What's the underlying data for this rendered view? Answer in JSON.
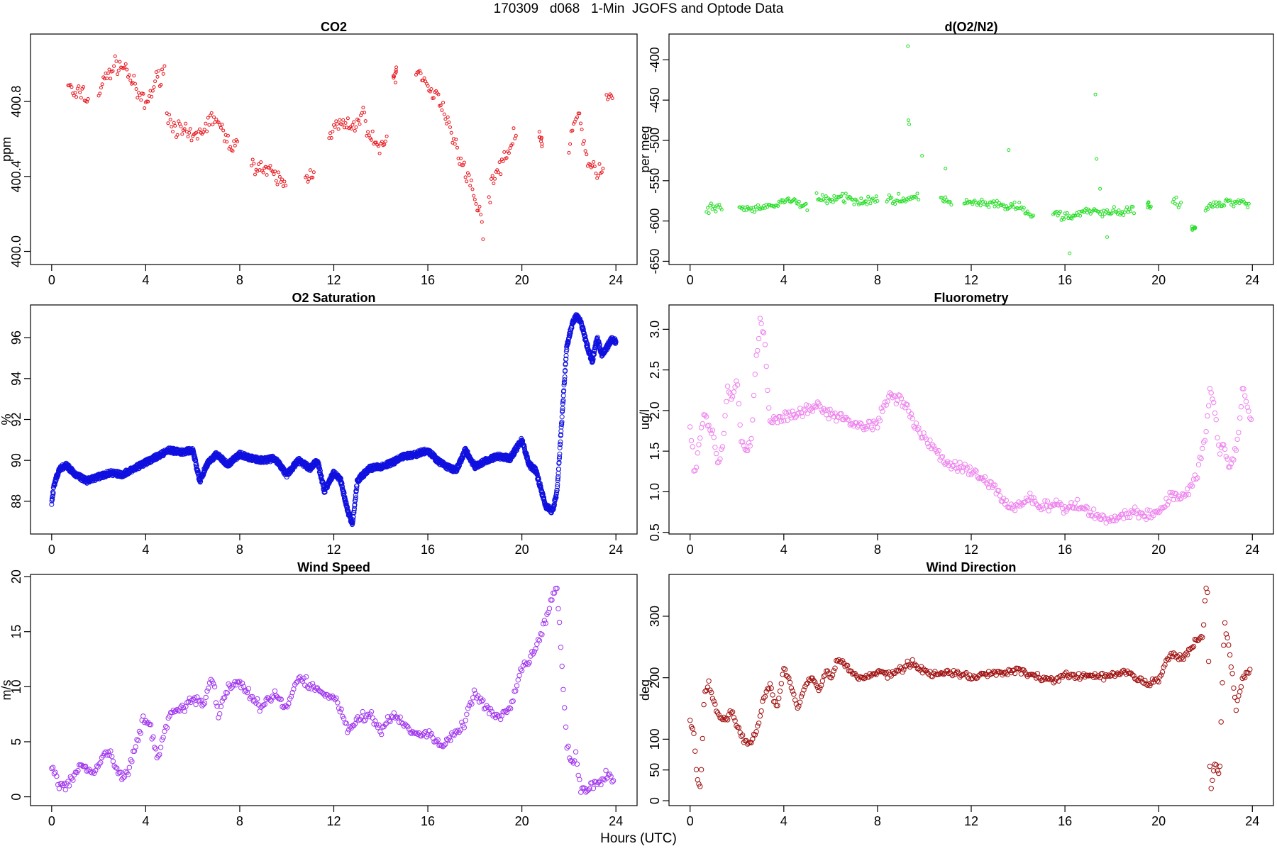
{
  "figure": {
    "title": "170309   d068   1-Min  JGOFS and Optode Data",
    "xlabel": "Hours (UTC)"
  },
  "chart_data": [
    {
      "type": "scatter",
      "title": "CO2",
      "xlabel": "Hours (UTC)",
      "ylabel": "ppm",
      "xlim": [
        -0.9,
        24.9
      ],
      "ylim": [
        399.93,
        401.16
      ],
      "xticks": [
        0,
        4,
        8,
        12,
        16,
        20,
        24
      ],
      "yticks": [
        400.0,
        400.4,
        400.8
      ],
      "ytick_labels": [
        "400.0",
        "400.4",
        "400.8"
      ],
      "color": "#e8141c",
      "marker_size": 2.0,
      "segments": [
        {
          "x": [
            0.7,
            1.0,
            1.3,
            1.6
          ],
          "y": [
            400.9,
            400.82,
            400.86,
            400.78
          ]
        },
        {
          "x": [
            2.0,
            2.4,
            2.8,
            3.2,
            3.6,
            4.0,
            4.4,
            4.8
          ],
          "y": [
            400.85,
            400.95,
            401.0,
            400.97,
            400.85,
            400.78,
            400.9,
            400.98
          ]
        },
        {
          "x": [
            4.9,
            5.4,
            6.0,
            6.5,
            6.9,
            7.4,
            7.9
          ],
          "y": [
            400.72,
            400.65,
            400.6,
            400.66,
            400.72,
            400.6,
            400.55
          ]
        },
        {
          "x": [
            8.5,
            9.0,
            9.5,
            10.0
          ],
          "y": [
            400.48,
            400.44,
            400.4,
            400.35
          ]
        },
        {
          "x": [
            10.8,
            11.2
          ],
          "y": [
            400.38,
            400.45
          ]
        },
        {
          "x": [
            11.8,
            12.3,
            12.8,
            13.2,
            13.6,
            14.0,
            14.3
          ],
          "y": [
            400.63,
            400.68,
            400.65,
            400.74,
            400.6,
            400.55,
            400.6
          ]
        },
        {
          "x": [
            14.6
          ],
          "y": [
            400.95
          ]
        },
        {
          "x": [
            15.5,
            16.0,
            16.5,
            17.0,
            17.5,
            18.0,
            18.4
          ],
          "y": [
            401.0,
            400.85,
            400.82,
            400.65,
            400.45,
            400.3,
            400.1
          ]
        },
        {
          "x": [
            18.6,
            19.0,
            19.5,
            19.8
          ],
          "y": [
            400.3,
            400.45,
            400.55,
            400.65
          ]
        },
        {
          "x": [
            20.8
          ],
          "y": [
            400.6
          ]
        },
        {
          "x": [
            22.0,
            22.4,
            22.8,
            23.2,
            23.5
          ],
          "y": [
            400.55,
            400.75,
            400.48,
            400.42,
            400.4
          ]
        },
        {
          "x": [
            23.6,
            23.9
          ],
          "y": [
            400.8,
            400.87
          ]
        }
      ],
      "jitter": 0.07
    },
    {
      "type": "scatter",
      "title": "d(O2/N2)",
      "xlabel": "Hours (UTC)",
      "ylabel": "per meg",
      "xlim": [
        -0.9,
        24.9
      ],
      "ylim": [
        -654,
        -368
      ],
      "xticks": [
        0,
        4,
        8,
        12,
        16,
        20,
        24
      ],
      "yticks": [
        -650,
        -600,
        -550,
        -500,
        -450,
        -400
      ],
      "ytick_labels": [
        "-650",
        "-600",
        "-550",
        "-500",
        "-450",
        "-400"
      ],
      "color": "#22dd22",
      "marker_size": 2.0,
      "segments": [
        {
          "x": [
            0.7,
            1.0,
            1.4
          ],
          "y": [
            -585,
            -585,
            -582
          ]
        },
        {
          "x": [
            2.1,
            2.6,
            3.1,
            3.6,
            4.1,
            4.6,
            5.0
          ],
          "y": [
            -583,
            -585,
            -585,
            -580,
            -575,
            -577,
            -582
          ]
        },
        {
          "x": [
            5.4,
            6.0,
            6.6,
            7.2,
            7.8,
            8.0
          ],
          "y": [
            -572,
            -573,
            -572,
            -575,
            -573,
            -572
          ]
        },
        {
          "x": [
            8.4,
            9.0,
            9.5,
            9.8
          ],
          "y": [
            -575,
            -573,
            -573,
            -570
          ]
        },
        {
          "x": [
            10.7,
            11.0,
            11.2
          ],
          "y": [
            -570,
            -575,
            -580
          ]
        },
        {
          "x": [
            11.7,
            12.3,
            12.9,
            13.5,
            14.0,
            14.4,
            14.7
          ],
          "y": [
            -578,
            -578,
            -580,
            -582,
            -583,
            -590,
            -595
          ]
        },
        {
          "x": [
            15.5,
            16.0,
            16.5,
            17.0,
            17.5,
            18.0,
            18.5,
            19.0
          ],
          "y": [
            -590,
            -595,
            -592,
            -588,
            -590,
            -588,
            -590,
            -585
          ]
        },
        {
          "x": [
            19.6
          ],
          "y": [
            -578
          ]
        },
        {
          "x": [
            20.6,
            21.0
          ],
          "y": [
            -575,
            -580
          ]
        },
        {
          "x": [
            21.5
          ],
          "y": [
            -608
          ]
        },
        {
          "x": [
            22.0,
            22.5,
            23.0,
            23.5,
            23.9
          ],
          "y": [
            -585,
            -580,
            -577,
            -575,
            -578
          ]
        }
      ],
      "outliers": {
        "x": [
          9.3,
          9.32,
          9.35,
          13.6,
          17.3,
          17.35,
          9.9,
          10.9,
          17.5,
          16.2,
          17.8
        ],
        "y": [
          -383,
          -475,
          -480,
          -512,
          -443,
          -523,
          -519,
          -535,
          -560,
          -640,
          -620
        ]
      },
      "jitter": 8
    },
    {
      "type": "scatter",
      "title": "O2 Saturation",
      "xlabel": "Hours (UTC)",
      "ylabel": "%",
      "xlim": [
        -0.9,
        24.9
      ],
      "ylim": [
        86.4,
        97.6
      ],
      "xticks": [
        0,
        4,
        8,
        12,
        16,
        20,
        24
      ],
      "yticks": [
        88,
        90,
        92,
        94,
        96
      ],
      "ytick_labels": [
        "88",
        "90",
        "92",
        "94",
        "96"
      ],
      "color": "#1010e0",
      "marker_size": 3.0,
      "line": {
        "x": [
          0,
          0.1,
          0.3,
          0.6,
          1.0,
          1.5,
          2.0,
          2.5,
          3.0,
          3.5,
          4.0,
          4.5,
          5.0,
          5.5,
          6.0,
          6.3,
          6.6,
          7.0,
          7.5,
          8.0,
          8.5,
          9.0,
          9.5,
          10.0,
          10.5,
          11.0,
          11.3,
          11.6,
          12.0,
          12.3,
          12.6,
          12.8,
          13.0,
          13.5,
          14.0,
          14.5,
          15.0,
          15.5,
          16.0,
          16.4,
          16.8,
          17.2,
          17.6,
          18.0,
          18.5,
          19.0,
          19.5,
          20.0,
          20.3,
          20.6,
          21.0,
          21.3,
          21.5,
          21.7,
          21.9,
          22.1,
          22.3,
          22.5,
          22.8,
          23.0,
          23.2,
          23.4,
          23.6,
          23.8,
          24.0
        ],
        "y": [
          87.9,
          88.8,
          89.5,
          89.8,
          89.3,
          89.0,
          89.2,
          89.4,
          89.3,
          89.6,
          89.9,
          90.2,
          90.5,
          90.4,
          90.5,
          89.0,
          89.8,
          90.3,
          89.8,
          90.3,
          90.1,
          90.0,
          90.1,
          89.3,
          90.0,
          89.6,
          90.0,
          88.5,
          89.4,
          89.0,
          87.5,
          86.9,
          89.0,
          89.6,
          89.7,
          89.9,
          90.2,
          90.3,
          90.5,
          90.0,
          89.7,
          89.5,
          90.5,
          89.7,
          90.0,
          90.2,
          90.1,
          91.0,
          89.8,
          89.5,
          87.8,
          87.5,
          88.5,
          92.0,
          95.5,
          96.5,
          97.1,
          96.8,
          95.5,
          94.8,
          96.0,
          95.2,
          95.5,
          95.9,
          95.8
        ]
      }
    },
    {
      "type": "scatter",
      "title": "Fluorometry",
      "xlabel": "Hours (UTC)",
      "ylabel": "ug/l",
      "xlim": [
        -0.9,
        24.9
      ],
      "ylim": [
        0.48,
        3.3
      ],
      "xticks": [
        0,
        4,
        8,
        12,
        16,
        20,
        24
      ],
      "yticks": [
        0.5,
        1.0,
        1.5,
        2.0,
        2.5,
        3.0
      ],
      "ytick_labels": [
        "0.5",
        "1.0",
        "1.5",
        "2.0",
        "2.5",
        "3.0"
      ],
      "color": "#ee82ee",
      "marker_size": 3.2,
      "line": {
        "x": [
          0,
          0.2,
          0.4,
          0.6,
          0.8,
          1.0,
          1.2,
          1.4,
          1.6,
          1.8,
          2.0,
          2.2,
          2.4,
          2.6,
          2.8,
          3.0,
          3.2,
          3.4,
          3.6,
          4.0,
          4.5,
          5.0,
          5.5,
          6.0,
          6.5,
          7.0,
          7.5,
          8.0,
          8.5,
          9.0,
          9.5,
          10.0,
          10.5,
          11.0,
          11.5,
          12.0,
          12.5,
          13.0,
          13.5,
          14.0,
          14.5,
          15.0,
          15.5,
          16.0,
          16.5,
          17.0,
          17.5,
          18.0,
          18.5,
          19.0,
          19.5,
          20.0,
          20.5,
          21.0,
          21.5,
          21.8,
          22.0,
          22.2,
          22.4,
          22.6,
          22.8,
          23.0,
          23.3,
          23.6,
          23.8,
          24.0
        ],
        "y": [
          1.85,
          1.2,
          1.6,
          2.0,
          1.8,
          1.7,
          1.3,
          1.6,
          2.3,
          2.1,
          2.4,
          1.6,
          1.5,
          1.55,
          2.6,
          3.1,
          2.8,
          1.8,
          1.9,
          1.9,
          1.95,
          2.0,
          2.05,
          1.95,
          1.9,
          1.85,
          1.8,
          1.85,
          2.2,
          2.15,
          1.9,
          1.65,
          1.5,
          1.35,
          1.3,
          1.25,
          1.15,
          1.05,
          0.85,
          0.8,
          0.95,
          0.8,
          0.85,
          0.78,
          0.85,
          0.75,
          0.7,
          0.65,
          0.72,
          0.75,
          0.7,
          0.75,
          0.95,
          0.95,
          1.1,
          1.4,
          1.7,
          2.3,
          2.0,
          1.5,
          1.6,
          1.3,
          1.5,
          2.3,
          2.0,
          1.8
        ]
      },
      "jitter": 0.1
    },
    {
      "type": "scatter",
      "title": "Wind Speed",
      "xlabel": "Hours (UTC)",
      "ylabel": "m/s",
      "xlim": [
        -0.9,
        24.9
      ],
      "ylim": [
        -0.8,
        20.2
      ],
      "xticks": [
        0,
        4,
        8,
        12,
        16,
        20,
        24
      ],
      "yticks": [
        0,
        5,
        10,
        15,
        20
      ],
      "ytick_labels": [
        "0",
        "5",
        "10",
        "15",
        "20"
      ],
      "color": "#a035ee",
      "marker_size": 3.2,
      "line": {
        "x": [
          0,
          0.3,
          0.6,
          0.9,
          1.2,
          1.5,
          1.8,
          2.1,
          2.4,
          2.7,
          3.0,
          3.3,
          3.6,
          3.9,
          4.2,
          4.5,
          5.0,
          5.5,
          6.0,
          6.5,
          6.8,
          7.1,
          7.5,
          8.0,
          8.5,
          9.0,
          9.5,
          10.0,
          10.5,
          11.0,
          11.5,
          12.0,
          12.3,
          12.6,
          13.0,
          13.5,
          14.0,
          14.5,
          15.0,
          15.5,
          16.0,
          16.5,
          17.0,
          17.5,
          18.0,
          18.5,
          19.0,
          19.5,
          20.0,
          20.3,
          20.6,
          21.0,
          21.3,
          21.5,
          21.7,
          21.9,
          22.1,
          22.3,
          22.5,
          22.7,
          23.0,
          23.3,
          23.6,
          23.9
        ],
        "y": [
          2.5,
          1.3,
          1.0,
          1.5,
          3.0,
          2.5,
          2.0,
          3.5,
          4.0,
          3.0,
          1.5,
          2.5,
          5.0,
          7.0,
          6.5,
          3.5,
          7.5,
          8.0,
          9.0,
          8.5,
          11.0,
          7.5,
          10.0,
          10.5,
          9.0,
          8.0,
          9.5,
          8.0,
          11.0,
          10.0,
          9.5,
          9.0,
          8.0,
          6.0,
          7.0,
          7.5,
          6.0,
          7.5,
          6.5,
          5.5,
          6.0,
          4.5,
          5.5,
          6.5,
          9.5,
          8.0,
          7.0,
          8.0,
          11.5,
          12.5,
          13.5,
          16.0,
          18.0,
          19.0,
          12.0,
          5.0,
          3.0,
          3.5,
          1.0,
          0.5,
          1.0,
          1.5,
          2.0,
          1.5
        ]
      },
      "jitter": 0.7
    },
    {
      "type": "scatter",
      "title": "Wind Direction",
      "xlabel": "Hours (UTC)",
      "ylabel": "deg",
      "xlim": [
        -0.9,
        24.9
      ],
      "ylim": [
        -8,
        368
      ],
      "xticks": [
        0,
        4,
        8,
        12,
        16,
        20,
        24
      ],
      "yticks": [
        0,
        50,
        100,
        200,
        300
      ],
      "ytick_labels": [
        "0",
        "50",
        "100",
        "200",
        "300"
      ],
      "color": "#a01010",
      "marker_size": 3.2,
      "line": {
        "x": [
          0,
          0.15,
          0.3,
          0.45,
          0.6,
          0.8,
          1.0,
          1.2,
          1.5,
          1.8,
          2.0,
          2.3,
          2.6,
          2.9,
          3.1,
          3.4,
          3.7,
          4.0,
          4.3,
          4.6,
          4.9,
          5.2,
          5.5,
          5.8,
          6.0,
          6.3,
          6.6,
          7.0,
          7.5,
          8.0,
          8.5,
          9.0,
          9.5,
          10.0,
          10.5,
          11.0,
          11.5,
          12.0,
          12.5,
          13.0,
          13.5,
          14.0,
          14.5,
          15.0,
          15.5,
          16.0,
          16.5,
          17.0,
          17.5,
          18.0,
          18.5,
          19.0,
          19.5,
          20.0,
          20.3,
          20.6,
          21.0,
          21.3,
          21.6,
          21.9,
          22.0,
          22.1,
          22.2,
          22.4,
          22.6,
          22.8,
          23.0,
          23.3,
          23.6,
          23.9
        ],
        "y": [
          130,
          110,
          40,
          20,
          170,
          190,
          160,
          140,
          130,
          145,
          120,
          100,
          95,
          120,
          160,
          190,
          150,
          215,
          190,
          150,
          190,
          200,
          180,
          210,
          200,
          230,
          220,
          205,
          200,
          210,
          205,
          215,
          225,
          210,
          205,
          210,
          205,
          200,
          205,
          210,
          205,
          215,
          205,
          200,
          195,
          205,
          200,
          205,
          200,
          205,
          210,
          200,
          190,
          195,
          225,
          240,
          230,
          245,
          260,
          270,
          350,
          340,
          10,
          60,
          40,
          290,
          250,
          150,
          200,
          210
        ]
      },
      "jitter": 8
    }
  ]
}
